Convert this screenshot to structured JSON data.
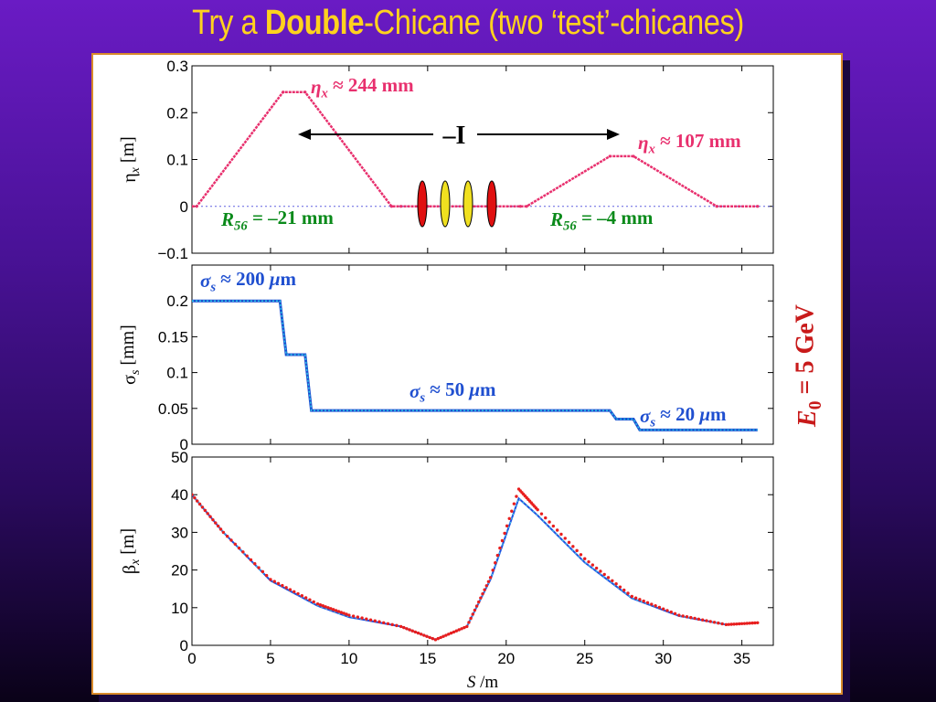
{
  "slide": {
    "title_prefix": "Try a ",
    "title_bold": "Double",
    "title_suffix": "-Chicane (two ‘test’-chicanes)"
  },
  "colors": {
    "eta": "#e8306e",
    "sigma_dark": "#1f4fd0",
    "sigma_light": "#29c7e8",
    "beta_red": "#e81e1e",
    "beta_blue": "#2050e0",
    "beta_cyan": "#40d8e8",
    "r56": "#0a8a1a",
    "energy": "#c81a1a",
    "magnet_red": "#e01010",
    "magnet_yellow": "#f0e020"
  },
  "chart_data": [
    {
      "type": "line",
      "name": "eta_x",
      "ylabel_sym": "η",
      "ylabel_sub": "x",
      "ylabel_unit": " [m]",
      "ylim": [
        -0.1,
        0.3
      ],
      "xlim": [
        0,
        37
      ],
      "yticks": [
        "−0.1",
        "0",
        "0.1",
        "0.2",
        "0.3"
      ],
      "ytick_values": [
        -0.1,
        0,
        0.1,
        0.2,
        0.3
      ],
      "series": [
        {
          "x": [
            0,
            0.3,
            5.8,
            7.2,
            12.7,
            13.3,
            15,
            16.3,
            17.5,
            19,
            20.9,
            21.3,
            26.6,
            28.1,
            33.4,
            36
          ],
          "y": [
            0,
            0,
            0.244,
            0.244,
            0,
            0,
            0,
            0,
            0,
            0,
            0,
            0,
            0.107,
            0.107,
            0,
            0
          ]
        }
      ],
      "annotations": {
        "eta1_sym": "η",
        "eta1_sub": "x",
        "eta1_text": " ≈ 244 mm",
        "eta2_sym": "η",
        "eta2_sub": "x",
        "eta2_text": " ≈ 107 mm",
        "minus_I": "–I",
        "r56a_sym": "R",
        "r56a_sub": "56",
        "r56a_text": " = –21 mm",
        "r56b_sym": "R",
        "r56b_sub": "56",
        "r56b_text": " = –4 mm"
      },
      "magnets": [
        "red",
        "yellow",
        "yellow",
        "red"
      ]
    },
    {
      "type": "line",
      "name": "sigma_s",
      "ylabel_sym": "σ",
      "ylabel_sub": "s",
      "ylabel_unit": " [mm]",
      "ylim": [
        0,
        0.25
      ],
      "xlim": [
        0,
        37
      ],
      "yticks": [
        "0",
        "0.05",
        "0.1",
        "0.15",
        "0.2"
      ],
      "ytick_values": [
        0,
        0.05,
        0.1,
        0.15,
        0.2
      ],
      "series": [
        {
          "x": [
            0,
            5.6,
            6,
            7.2,
            7.6,
            26.6,
            27,
            28.1,
            28.5,
            36
          ],
          "y": [
            0.2,
            0.2,
            0.125,
            0.125,
            0.047,
            0.047,
            0.035,
            0.035,
            0.02,
            0.02
          ]
        }
      ],
      "annotations": {
        "s1_sym": "σ",
        "s1_sub": "s",
        "s1_text": " ≈ 200 ",
        "s1_mu": "μ",
        "s1_unit": "m",
        "s2_sym": "σ",
        "s2_sub": "s",
        "s2_text": " ≈ 50 ",
        "s2_mu": "μ",
        "s2_unit": "m",
        "s3_sym": "σ",
        "s3_sub": "s",
        "s3_text": " ≈ 20 ",
        "s3_mu": "μ",
        "s3_unit": "m"
      }
    },
    {
      "type": "line",
      "name": "beta_x",
      "ylabel_sym": "β",
      "ylabel_sub": "x",
      "ylabel_unit": " [m]",
      "ylim": [
        0,
        50
      ],
      "xlim": [
        0,
        37
      ],
      "yticks": [
        "0",
        "10",
        "20",
        "30",
        "40",
        "50"
      ],
      "ytick_values": [
        0,
        10,
        20,
        30,
        40,
        50
      ],
      "xticks": [
        "0",
        "5",
        "10",
        "15",
        "20",
        "25",
        "30",
        "35"
      ],
      "xtick_values": [
        0,
        5,
        10,
        15,
        20,
        25,
        30,
        35
      ],
      "xlabel_sym": "S",
      "xlabel_unit": " /m",
      "series": [
        {
          "name": "red",
          "x": [
            0,
            2,
            5,
            8,
            10,
            13.3,
            15.5,
            17.5,
            19,
            20.8,
            22,
            25,
            28,
            31,
            34,
            36
          ],
          "y": [
            40,
            30,
            17.5,
            11,
            8,
            5,
            1.5,
            5,
            18,
            41.5,
            36,
            23,
            13,
            8,
            5.5,
            6
          ]
        },
        {
          "name": "blue",
          "x": [
            0,
            2,
            5,
            8,
            10,
            13.3,
            15.5,
            17.5,
            19,
            20.8,
            22,
            25,
            28,
            31,
            34,
            36
          ],
          "y": [
            40,
            30,
            17.2,
            10.5,
            7.5,
            5,
            1.5,
            5,
            17.5,
            39,
            34.5,
            22,
            12.5,
            7.8,
            5.5,
            6
          ]
        }
      ]
    }
  ],
  "energy_label": {
    "sym": "E",
    "sub": "0",
    "text": " = 5 GeV"
  }
}
